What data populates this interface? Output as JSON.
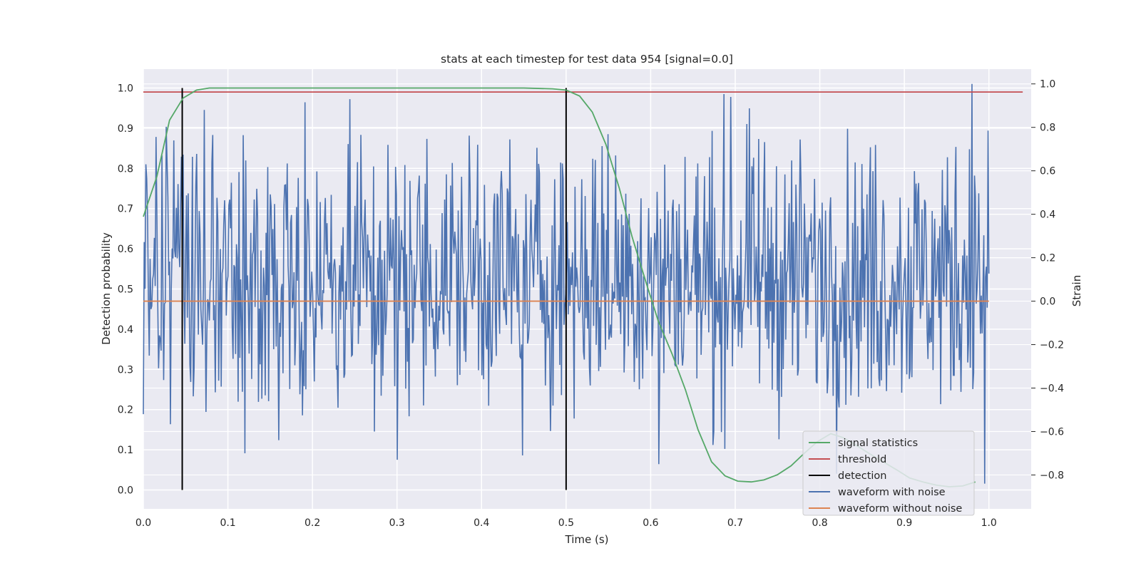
{
  "chart_data": {
    "type": "line",
    "title": "stats at each timestep for test data 954 [signal=0.0]",
    "xlabel": "Time (s)",
    "ylabel_left": "Detection probability",
    "ylabel_right": "Strain",
    "xlim": [
      0.0,
      1.05
    ],
    "ylim_left": [
      -0.047,
      1.047
    ],
    "ylim_right": [
      -0.956,
      1.068
    ],
    "x_ticks": [
      "0.0",
      "0.1",
      "0.2",
      "0.3",
      "0.4",
      "0.5",
      "0.6",
      "0.7",
      "0.8",
      "0.9",
      "1.0"
    ],
    "y_left_ticks": [
      "0.0",
      "0.1",
      "0.2",
      "0.3",
      "0.4",
      "0.5",
      "0.6",
      "0.7",
      "0.8",
      "0.9",
      "1.0"
    ],
    "y_right_ticks": [
      "−0.8",
      "−0.6",
      "−0.4",
      "−0.2",
      "0.0",
      "0.2",
      "0.4",
      "0.6",
      "0.8",
      "1.0"
    ],
    "grid": true,
    "legend_position": "bottom-right",
    "threshold": {
      "name": "threshold",
      "value": 0.99,
      "x_range": [
        0.0,
        1.04
      ]
    },
    "detections": {
      "name": "detection",
      "x": [
        0.046,
        0.5
      ],
      "y_range": [
        0.0,
        1.0
      ]
    },
    "signal_statistics": {
      "name": "signal statistics",
      "axis": "left",
      "x": [
        0.0,
        0.016,
        0.031,
        0.047,
        0.063,
        0.078,
        0.094,
        0.109,
        0.125,
        0.25,
        0.375,
        0.45,
        0.484,
        0.5,
        0.516,
        0.531,
        0.547,
        0.563,
        0.578,
        0.594,
        0.609,
        0.625,
        0.641,
        0.656,
        0.672,
        0.688,
        0.703,
        0.719,
        0.734,
        0.75,
        0.766,
        0.781,
        0.797,
        0.813,
        0.828,
        0.844,
        0.859,
        0.875,
        0.891,
        0.906,
        0.922,
        0.938,
        0.953,
        0.969,
        0.984
      ],
      "y": [
        0.68,
        0.78,
        0.92,
        0.975,
        0.995,
        1.0,
        1.0,
        1.0,
        1.0,
        1.0,
        1.0,
        1.0,
        0.998,
        0.995,
        0.98,
        0.94,
        0.86,
        0.75,
        0.63,
        0.52,
        0.42,
        0.34,
        0.25,
        0.15,
        0.07,
        0.035,
        0.022,
        0.02,
        0.025,
        0.038,
        0.06,
        0.09,
        0.12,
        0.14,
        0.13,
        0.11,
        0.09,
        0.07,
        0.05,
        0.03,
        0.02,
        0.012,
        0.008,
        0.01,
        0.02
      ]
    },
    "waveform_without_noise": {
      "name": "waveform without noise",
      "axis": "right",
      "value": 0.0,
      "x_range": [
        0.0,
        1.0
      ]
    },
    "waveform_with_noise": {
      "name": "waveform with noise",
      "axis": "right",
      "x_range": [
        0.0,
        1.0
      ],
      "num_points": 1000,
      "y_range": [
        -0.84,
        1.0
      ],
      "peaks": [
        [
          0.0,
          -0.52
        ],
        [
          0.003,
          0.63
        ],
        [
          0.036,
          0.74
        ],
        [
          0.072,
          0.88
        ],
        [
          0.074,
          -0.51
        ],
        [
          0.12,
          -0.7
        ],
        [
          0.16,
          -0.64
        ],
        [
          0.253,
          0.64
        ],
        [
          0.273,
          -0.6
        ],
        [
          0.3,
          -0.73
        ],
        [
          0.395,
          0.72
        ],
        [
          0.448,
          -0.71
        ],
        [
          0.61,
          0.7
        ],
        [
          0.61,
          -0.75
        ],
        [
          0.695,
          0.94
        ],
        [
          0.688,
          -0.68
        ],
        [
          0.98,
          1.0
        ],
        [
          0.995,
          -0.84
        ]
      ]
    },
    "colors": {
      "signal_statistics": "#55a868",
      "threshold": "#c44e52",
      "detection": "#000000",
      "waveform_with_noise": "#4c72b0",
      "waveform_without_noise": "#dd8452",
      "axes_background": "#eaeaf2",
      "grid": "#ffffff"
    },
    "legend": [
      "signal statistics",
      "threshold",
      "detection",
      "waveform with noise",
      "waveform without noise"
    ]
  }
}
